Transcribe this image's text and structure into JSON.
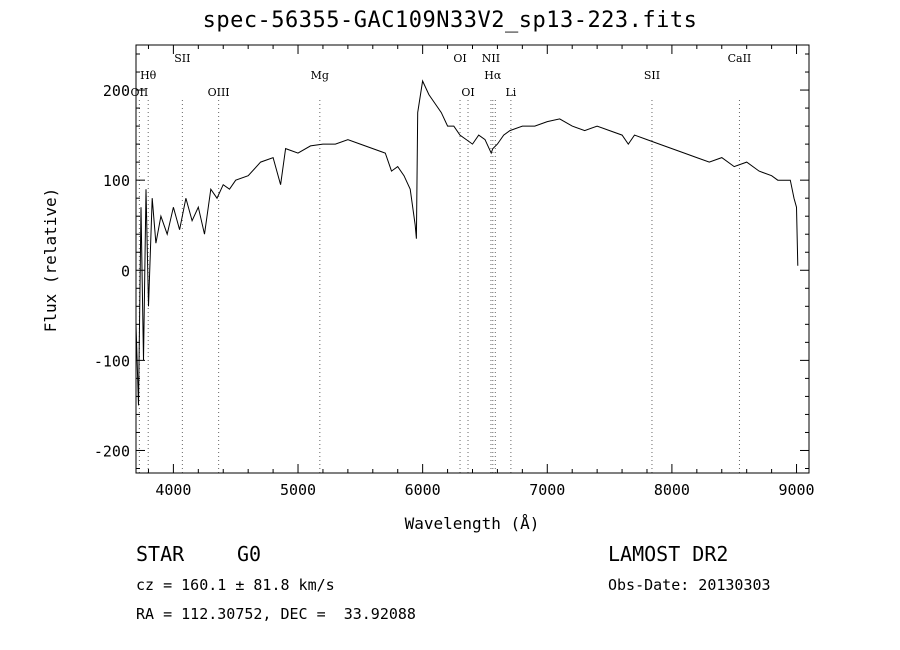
{
  "title": "spec-56355-GAC109N33V2_sp13-223.fits",
  "info": {
    "object_class": "STAR",
    "subclass": "G0",
    "survey": "LAMOST DR2",
    "redshift": "cz = 160.1 ± 81.8 km/s",
    "obs_date": "Obs-Date: 20130303",
    "coords": "RA = 112.30752, DEC =  33.92088"
  },
  "chart_data": {
    "type": "line",
    "title": "spec-56355-GAC109N33V2_sp13-223.fits",
    "xlabel": "Wavelength (Å)",
    "ylabel": "Flux (relative)",
    "xlim": [
      3700,
      9100
    ],
    "ylim": [
      -225,
      250
    ],
    "xticks": [
      4000,
      5000,
      6000,
      7000,
      8000,
      9000
    ],
    "yticks": [
      -200,
      -100,
      0,
      100,
      200
    ],
    "grid": false,
    "line_color": "#000000",
    "series": [
      {
        "x": [
          3700,
          3720,
          3740,
          3760,
          3780,
          3800,
          3830,
          3860,
          3900,
          3950,
          4000,
          4050,
          4100,
          4150,
          4200,
          4250,
          4300,
          4350,
          4400,
          4450,
          4500,
          4600,
          4700,
          4800,
          4860,
          4900,
          5000,
          5100,
          5200,
          5300,
          5400,
          5500,
          5600,
          5700,
          5750,
          5800,
          5850,
          5900,
          5940,
          5950,
          5960,
          6000,
          6050,
          6100,
          6150,
          6200,
          6250,
          6300,
          6350,
          6400,
          6450,
          6500,
          6550,
          6563,
          6600,
          6650,
          6700,
          6800,
          6900,
          7000,
          7100,
          7200,
          7300,
          7400,
          7500,
          7600,
          7650,
          7700,
          7800,
          7900,
          8000,
          8100,
          8200,
          8300,
          8400,
          8500,
          8600,
          8700,
          8800,
          8850,
          8900,
          8950,
          8980,
          9000,
          9010
        ],
        "y": [
          -60,
          -150,
          70,
          -100,
          90,
          -40,
          80,
          30,
          60,
          40,
          70,
          45,
          80,
          55,
          70,
          40,
          90,
          80,
          95,
          90,
          100,
          105,
          120,
          125,
          95,
          135,
          130,
          138,
          140,
          140,
          145,
          140,
          135,
          130,
          110,
          115,
          105,
          90,
          50,
          35,
          175,
          210,
          195,
          185,
          175,
          160,
          160,
          150,
          145,
          140,
          150,
          145,
          130,
          135,
          140,
          150,
          155,
          160,
          160,
          165,
          168,
          160,
          155,
          160,
          155,
          150,
          140,
          150,
          145,
          140,
          135,
          130,
          125,
          120,
          125,
          115,
          120,
          110,
          105,
          100,
          100,
          100,
          80,
          70,
          5
        ]
      }
    ],
    "line_markers": [
      {
        "label": "Hθ",
        "x": 3798,
        "row": "top2"
      },
      {
        "label": "OII",
        "x": 3727,
        "row": "mid"
      },
      {
        "label": "SII",
        "x": 4072,
        "row": "top"
      },
      {
        "label": "OIII",
        "x": 4363,
        "row": "mid"
      },
      {
        "label": "Mg",
        "x": 5175,
        "row": "top2"
      },
      {
        "label": "OI",
        "x": 6300,
        "row": "top"
      },
      {
        "label": "OI",
        "x": 6364,
        "row": "mid"
      },
      {
        "label": "NII",
        "x": 6548,
        "row": "top"
      },
      {
        "label": "Hα",
        "x": 6563,
        "row": "top2"
      },
      {
        "label": "NII",
        "x": 6583,
        "row": "none"
      },
      {
        "label": "Li",
        "x": 6708,
        "row": "mid"
      },
      {
        "label": "SII",
        "x": 7840,
        "row": "top2"
      },
      {
        "label": "CaII",
        "x": 8542,
        "row": "top"
      }
    ]
  }
}
